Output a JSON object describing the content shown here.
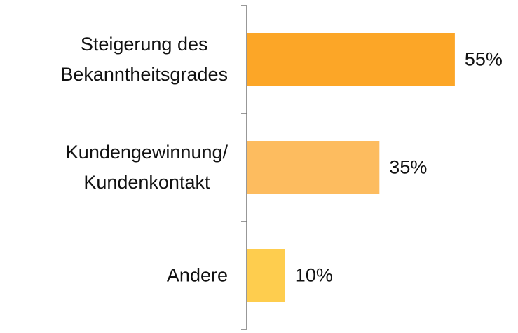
{
  "chart_data": {
    "type": "bar",
    "orientation": "horizontal",
    "categories": [
      "Steigerung des\nBekanntheitsgrades",
      "Kundengewinnung/\nKundenkontakt",
      "Andere"
    ],
    "values": [
      55,
      35,
      10
    ],
    "value_labels": [
      "55%",
      "35%",
      "10%"
    ],
    "colors": [
      "#fca627",
      "#fdbc5f",
      "#fecd4e"
    ]
  }
}
